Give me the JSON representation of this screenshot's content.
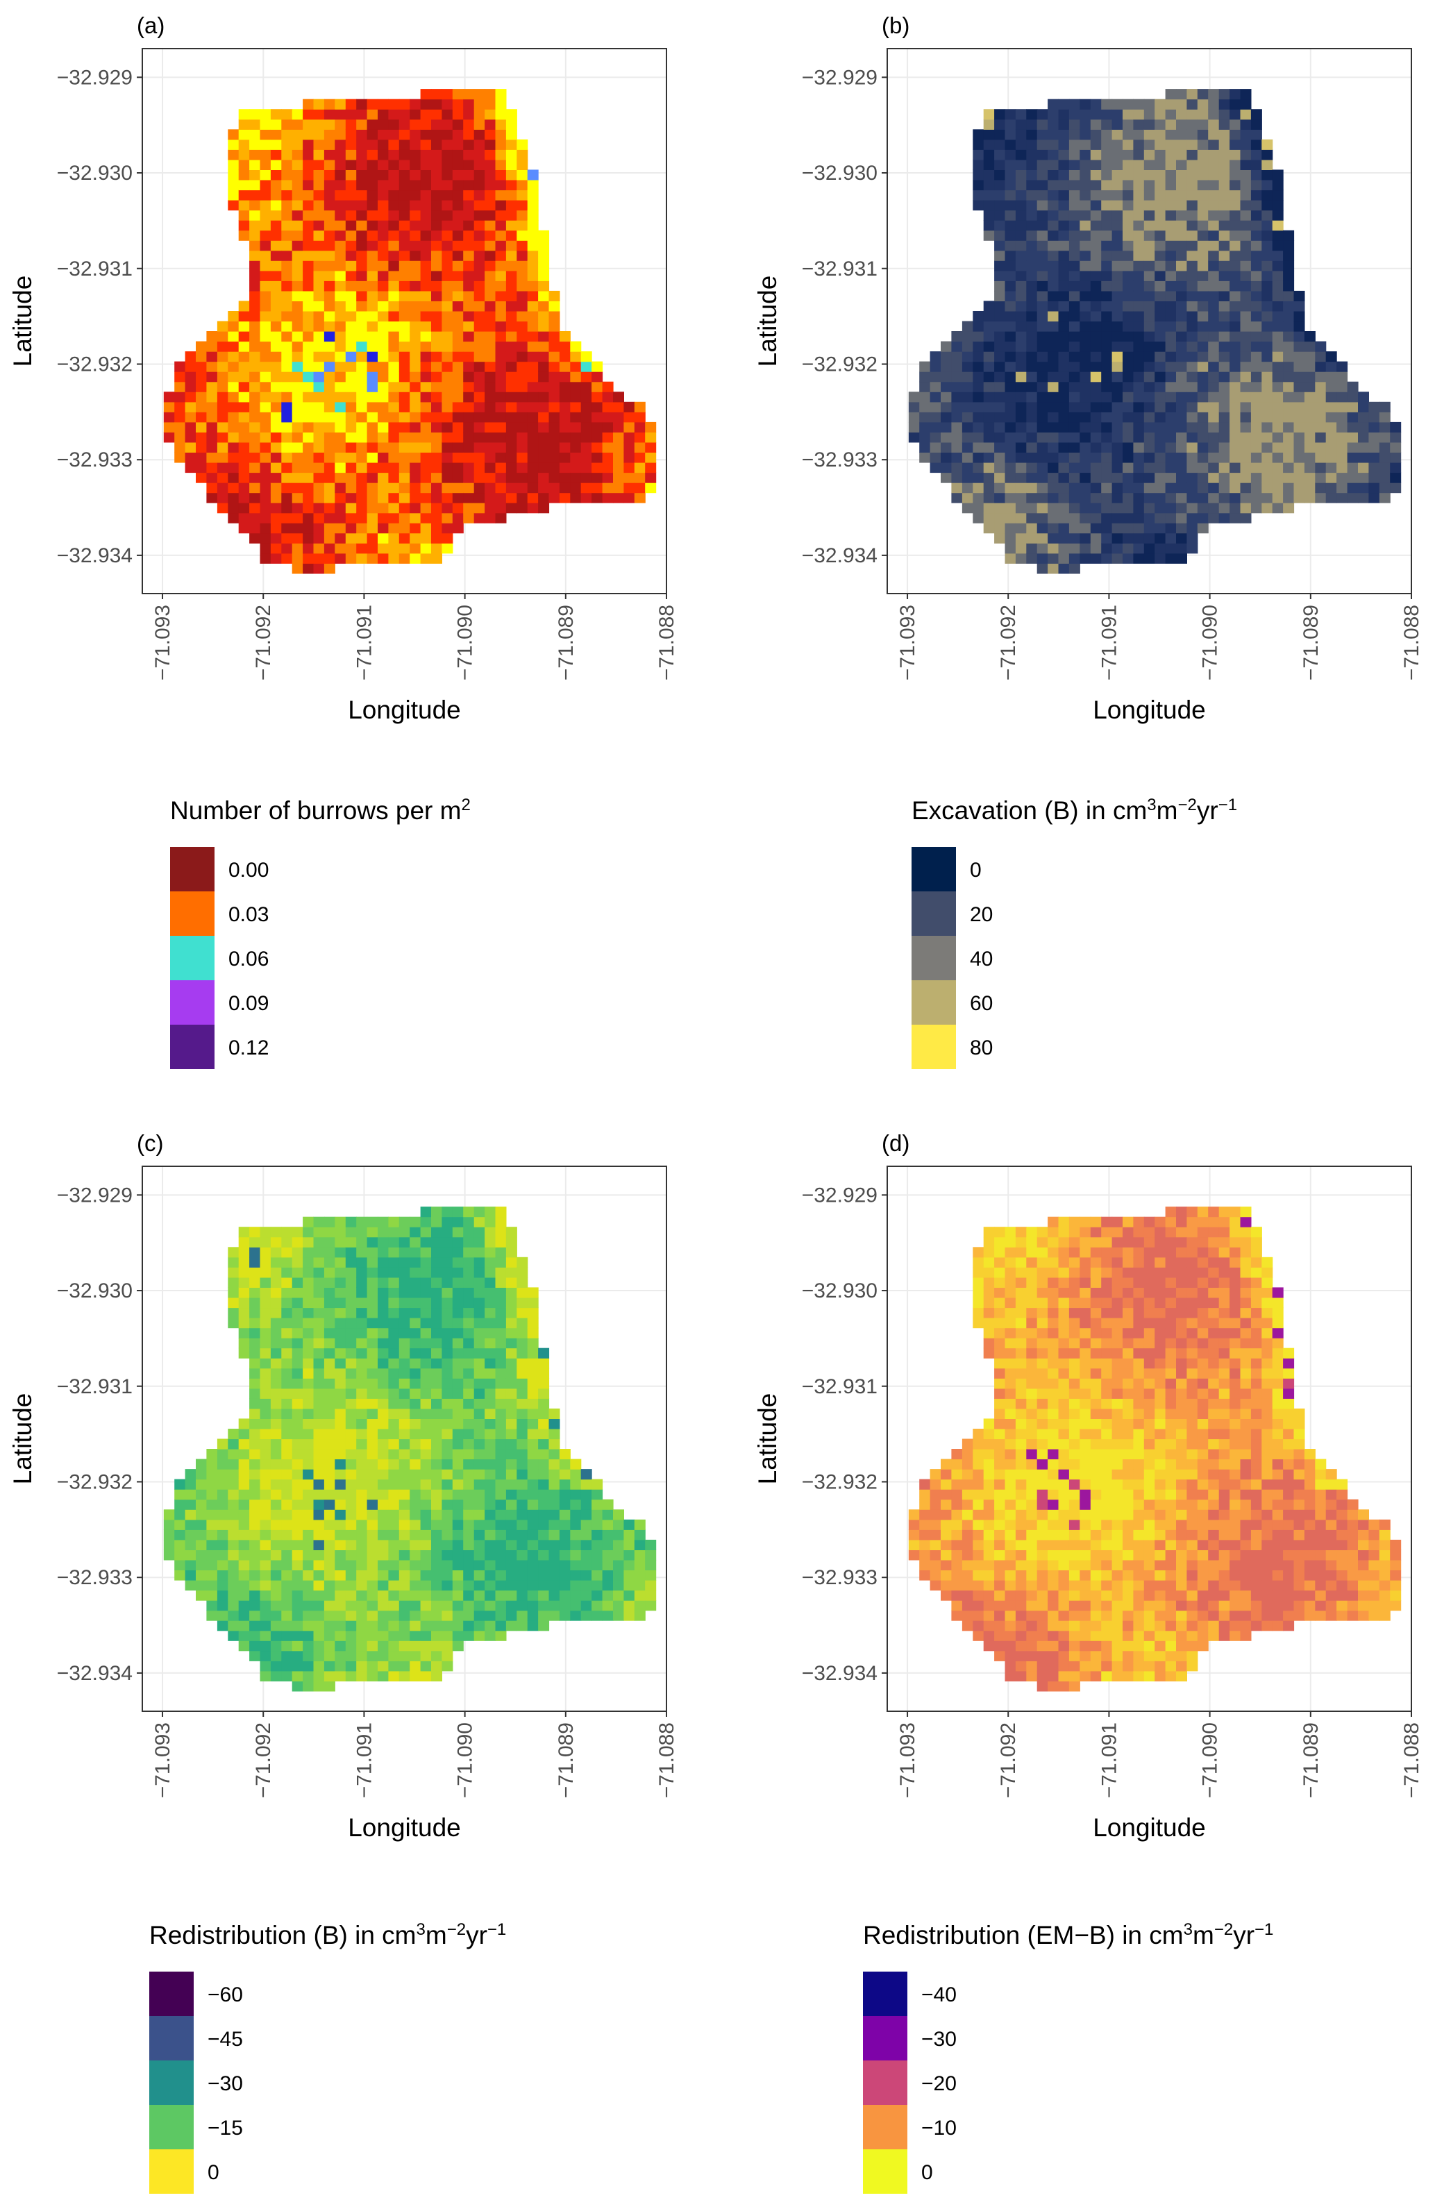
{
  "axes": {
    "x_title": "Longitude",
    "y_title": "Latitude",
    "x_ticks": [
      "−71.093",
      "−71.092",
      "−71.091",
      "−71.090",
      "−71.089",
      "−71.088"
    ],
    "y_ticks": [
      "−32.929",
      "−32.930",
      "−32.931",
      "−32.932",
      "−32.933",
      "−32.934"
    ]
  },
  "panels": [
    {
      "tag": "(a)",
      "legend_title": "Number of burrows per m",
      "legend_title_sup": "2",
      "legend": [
        {
          "label": "0.00",
          "color": "#8B1A1A"
        },
        {
          "label": "0.03",
          "color": "#FF6E00"
        },
        {
          "label": "0.06",
          "color": "#40E0D0"
        },
        {
          "label": "0.09",
          "color": "#A63CF0"
        },
        {
          "label": "0.12",
          "color": "#551A8B"
        }
      ],
      "map_colors": [
        "#FFFF00",
        "#FFB000",
        "#FF8000",
        "#FF3000",
        "#D41A1A",
        "#B01515"
      ],
      "accent_colors": [
        "#40E0D0",
        "#5A8CFF",
        "#2020E0"
      ]
    },
    {
      "tag": "(b)",
      "legend_title": "Excavation (B) in cm",
      "legend_title_sup": "3",
      "legend_title_tail": "m",
      "legend_title_sup2": "−2",
      "legend_title_tail2": "yr",
      "legend_title_sup3": "−1",
      "legend": [
        {
          "label": "0",
          "color": "#00204D"
        },
        {
          "label": "20",
          "color": "#414D6B"
        },
        {
          "label": "40",
          "color": "#7C7B78"
        },
        {
          "label": "60",
          "color": "#BCAF6F"
        },
        {
          "label": "80",
          "color": "#FFEA46"
        }
      ],
      "map_colors": [
        "#0E2557",
        "#1F3263",
        "#2C3E6C",
        "#414D6B",
        "#6A6E74",
        "#A89D73"
      ],
      "accent_colors": [
        "#BCAF6F",
        "#D6C36A"
      ]
    },
    {
      "tag": "(c)",
      "legend_title": "Redistribution (B) in cm",
      "legend_title_sup": "3",
      "legend_title_tail": "m",
      "legend_title_sup2": "−2",
      "legend_title_tail2": "yr",
      "legend_title_sup3": "−1",
      "legend": [
        {
          "label": "−60",
          "color": "#440154"
        },
        {
          "label": "−45",
          "color": "#3B528B"
        },
        {
          "label": "−30",
          "color": "#21908C"
        },
        {
          "label": "−15",
          "color": "#5DC863"
        },
        {
          "label": "0",
          "color": "#FDE725"
        }
      ],
      "map_colors": [
        "#DDE318",
        "#BBDE2F",
        "#8FD744",
        "#6CCD5A",
        "#45BF70",
        "#27AD81"
      ],
      "accent_colors": [
        "#21908C",
        "#2C728E"
      ]
    },
    {
      "tag": "(d)",
      "legend_title": "Redistribution (EM−B) in cm",
      "legend_title_sup": "3",
      "legend_title_tail": "m",
      "legend_title_sup2": "−2",
      "legend_title_tail2": "yr",
      "legend_title_sup3": "−1",
      "legend": [
        {
          "label": "−40",
          "color": "#0D0887"
        },
        {
          "label": "−30",
          "color": "#7E03A8"
        },
        {
          "label": "−20",
          "color": "#CC4778"
        },
        {
          "label": "−10",
          "color": "#F89540"
        },
        {
          "label": "0",
          "color": "#F0F921"
        }
      ],
      "map_colors": [
        "#F4E62A",
        "#F8D030",
        "#FBB63A",
        "#F99A45",
        "#F07F4F",
        "#E06A5C"
      ],
      "accent_colors": [
        "#CC4778",
        "#9C179E"
      ]
    }
  ],
  "chart_data": {
    "type": "heatmap",
    "x_range": [
      -71.0932,
      -71.088
    ],
    "y_range": [
      -32.9344,
      -32.9287
    ],
    "grid": true,
    "panels": [
      "(a)",
      "(b)",
      "(c)",
      "(d)"
    ]
  }
}
